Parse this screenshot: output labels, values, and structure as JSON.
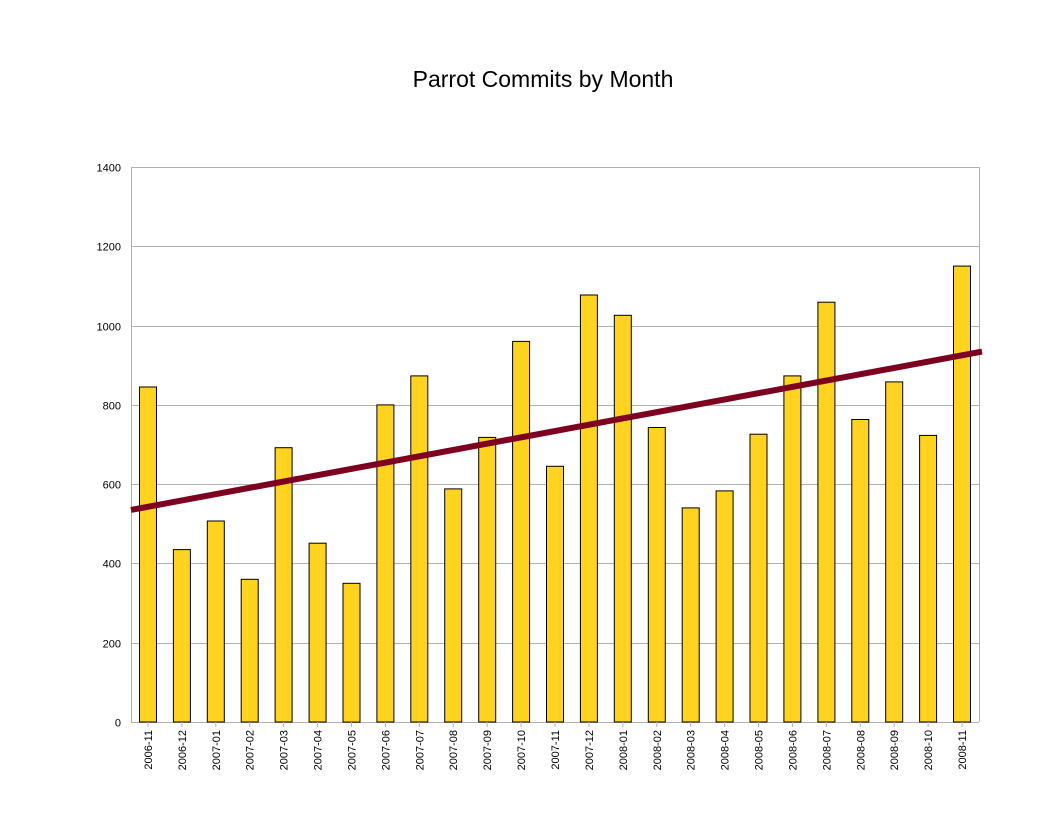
{
  "chart_data": {
    "type": "bar",
    "title": "Parrot Commits by Month",
    "xlabel": "",
    "ylabel": "",
    "ylim": [
      0,
      1400
    ],
    "yticks": [
      0,
      200,
      400,
      600,
      800,
      1000,
      1200,
      1400
    ],
    "grid": true,
    "legend": "none",
    "categories": [
      "2006-11",
      "2006-12",
      "2007-01",
      "2007-02",
      "2007-03",
      "2007-04",
      "2007-05",
      "2007-06",
      "2007-07",
      "2007-08",
      "2007-09",
      "2007-10",
      "2007-11",
      "2007-12",
      "2008-01",
      "2008-02",
      "2008-03",
      "2008-04",
      "2008-05",
      "2008-06",
      "2008-07",
      "2008-08",
      "2008-09",
      "2008-10",
      "2008-11"
    ],
    "values": [
      845,
      435,
      507,
      360,
      692,
      451,
      350,
      800,
      873,
      588,
      718,
      960,
      645,
      1077,
      1026,
      743,
      540,
      583,
      726,
      873,
      1059,
      763,
      858,
      723,
      1150
    ],
    "trendline": {
      "type": "linear",
      "start_value": 535,
      "end_value": 933
    },
    "colors": {
      "bar_fill": "#FFD320",
      "bar_stroke": "#000000",
      "trendline": "#7E0021",
      "grid": "#B3B3B3",
      "axis": "#B3B3B3"
    }
  }
}
